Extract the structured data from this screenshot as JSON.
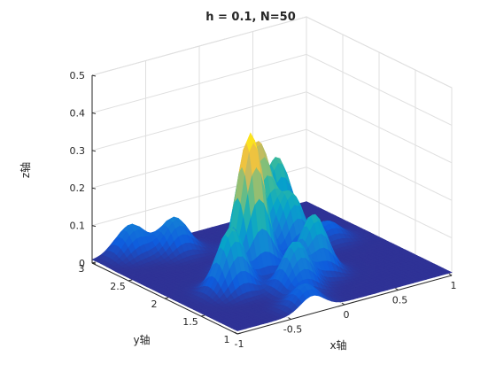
{
  "chart_data": {
    "type": "surface",
    "title": "h = 0.1,  N=50",
    "xlabel": "x轴",
    "ylabel": "y轴",
    "zlabel": "z轴",
    "xlim": [
      -1,
      1
    ],
    "ylim": [
      1,
      3
    ],
    "zlim": [
      0,
      0.5
    ],
    "x_ticks": [
      -1,
      -0.5,
      0,
      0.5,
      1
    ],
    "y_ticks": [
      1,
      1.5,
      2,
      2.5,
      3
    ],
    "z_ticks": [
      0,
      0.1,
      0.2,
      0.3,
      0.4,
      0.5
    ],
    "x_tick_labels": [
      "-1",
      "-0.5",
      "0",
      "0.5",
      "1"
    ],
    "y_tick_labels": [
      "1",
      "1.5",
      "2",
      "2.5",
      "3"
    ],
    "z_tick_labels": [
      "0",
      "0.1",
      "0.2",
      "0.3",
      "0.4",
      "0.5"
    ],
    "grid": true,
    "colormap": "parula",
    "peaks": [
      {
        "x": -0.2,
        "y": 2.0,
        "z": 0.37
      },
      {
        "x": 0.1,
        "y": 2.35,
        "z": 0.29
      },
      {
        "x": 0.45,
        "y": 2.6,
        "z": 0.2
      },
      {
        "x": 0.25,
        "y": 2.1,
        "z": 0.16
      },
      {
        "x": -0.55,
        "y": 1.75,
        "z": 0.17
      },
      {
        "x": 0.15,
        "y": 1.65,
        "z": 0.16
      },
      {
        "x": -0.15,
        "y": 1.45,
        "z": 0.13
      },
      {
        "x": -0.4,
        "y": 2.75,
        "z": 0.09
      },
      {
        "x": -0.7,
        "y": 2.9,
        "z": 0.08
      },
      {
        "x": -0.3,
        "y": 1.1,
        "z": 0.06
      },
      {
        "x": 0.65,
        "y": 2.2,
        "z": 0.05
      }
    ]
  },
  "colors": {
    "background": "#ffffff",
    "grid": "#dfdfdf",
    "axis": "#262626",
    "colormap_stops": [
      "#352a87",
      "#0f5cdd",
      "#1481d6",
      "#06a4ca",
      "#2eb7a4",
      "#87bf77",
      "#d1bb59",
      "#fec832",
      "#f9fb0e"
    ]
  }
}
